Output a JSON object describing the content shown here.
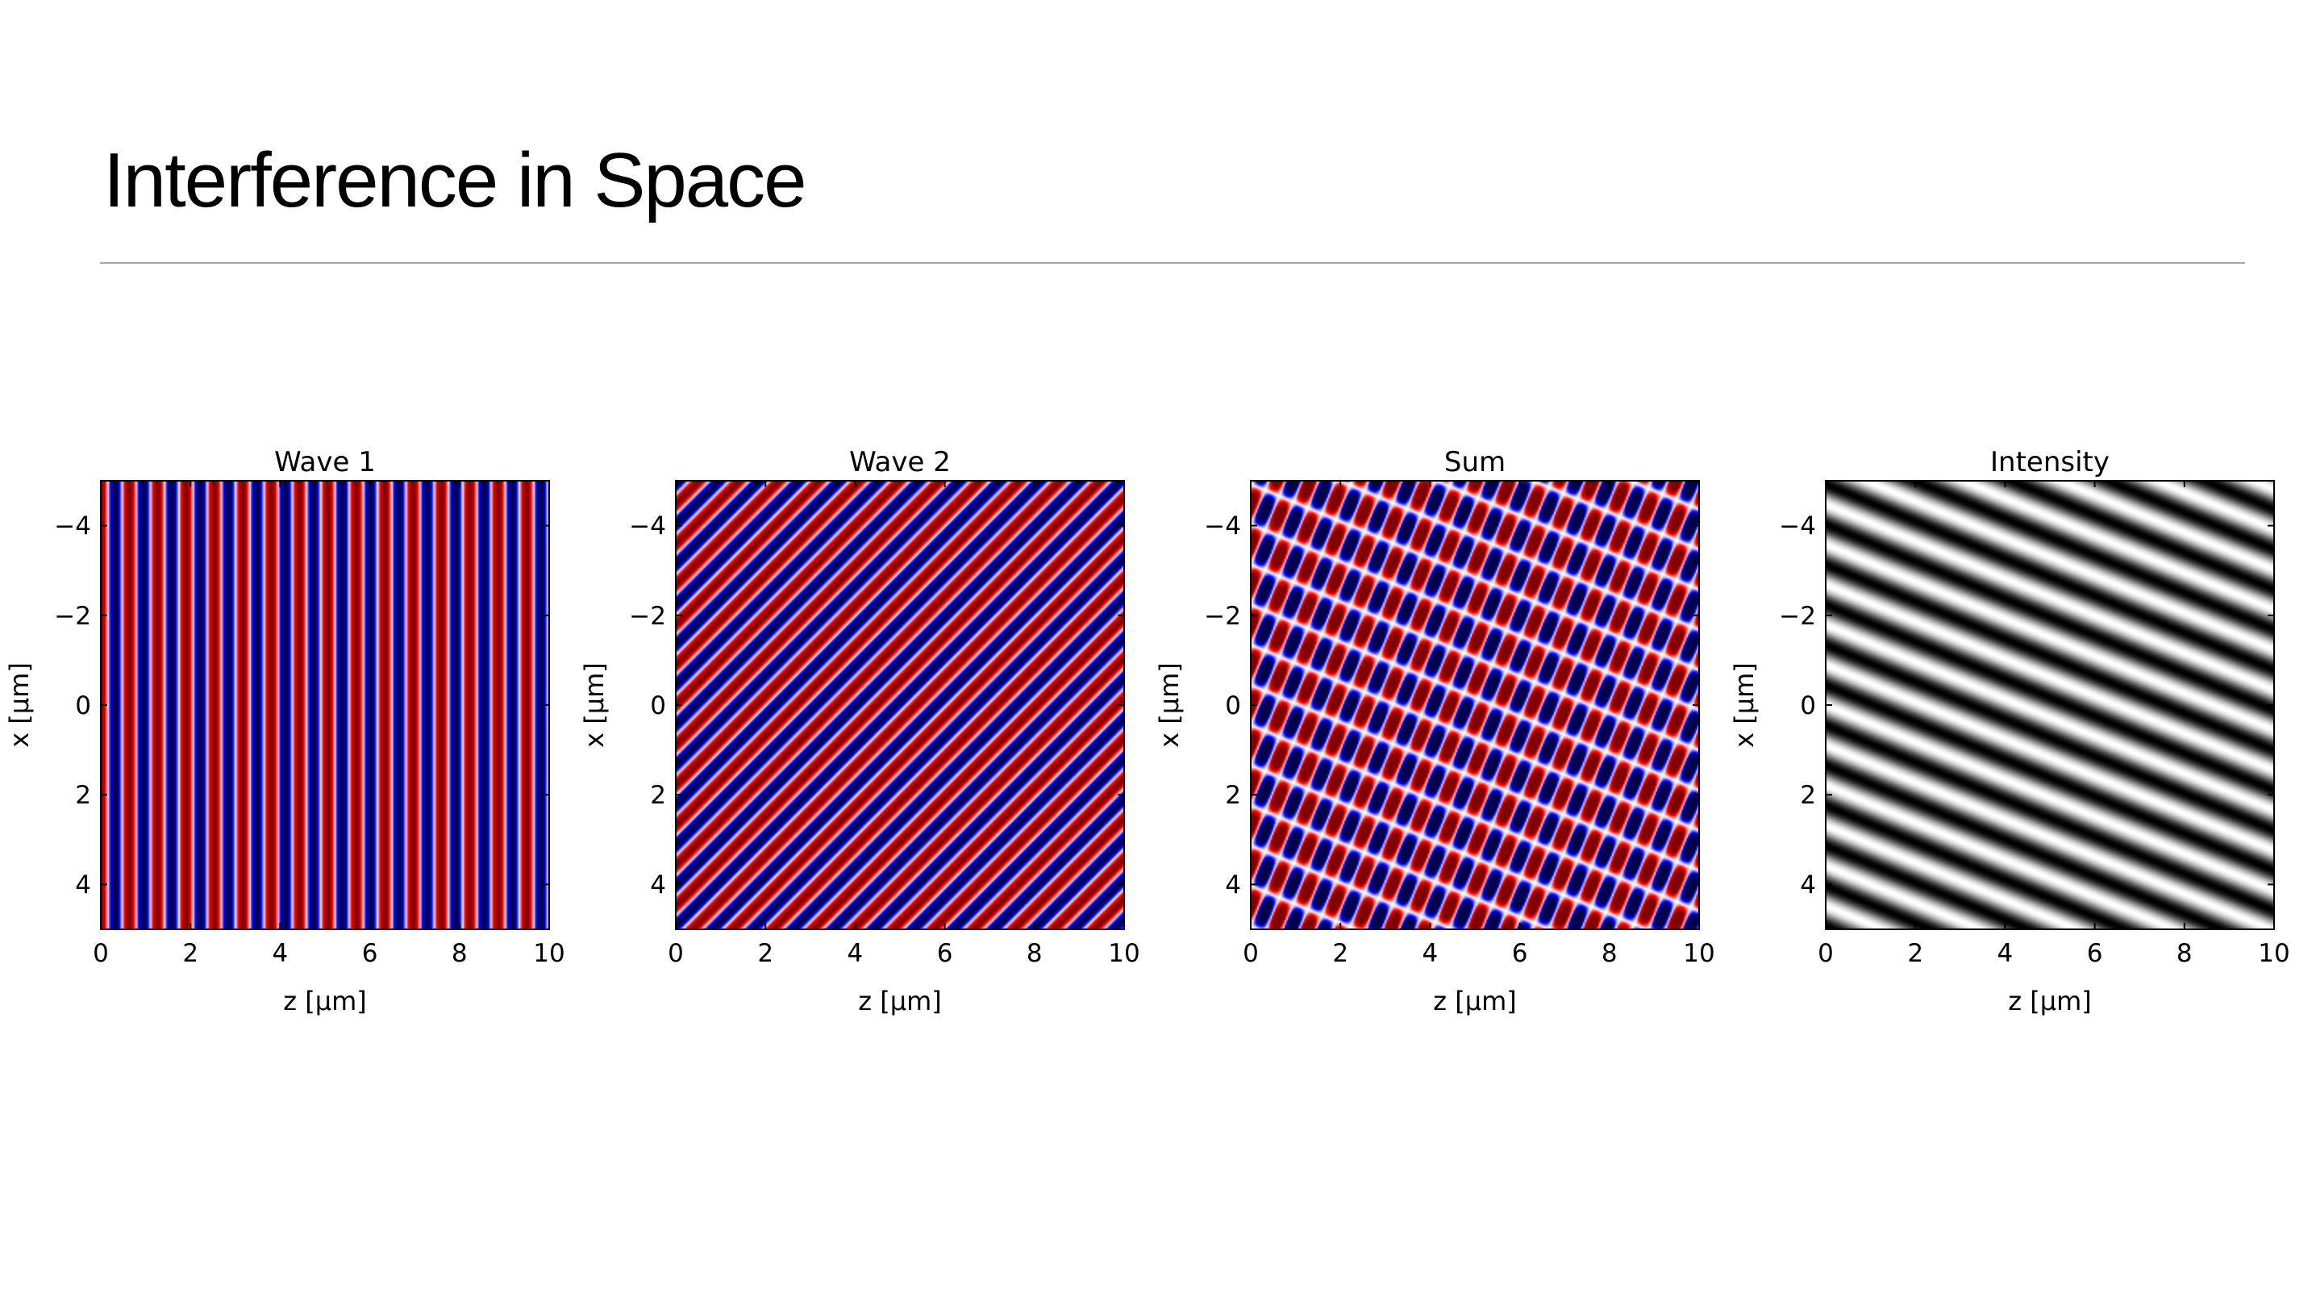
{
  "slide": {
    "title": "Interference in Space"
  },
  "chart_data": [
    {
      "type": "heatmap",
      "title": "Wave 1",
      "xlabel": "z [µm]",
      "ylabel": "x [µm]",
      "xlim": [
        0,
        10
      ],
      "ylim": [
        -5,
        5
      ],
      "y_inverted": true,
      "xticks": [
        0,
        2,
        4,
        6,
        8,
        10
      ],
      "yticks": [
        -4,
        -2,
        0,
        2,
        4
      ],
      "colormap": "seismic",
      "field": "wave1",
      "period_um": 0.633,
      "angle_deg": 0
    },
    {
      "type": "heatmap",
      "title": "Wave 2",
      "xlabel": "z [µm]",
      "ylabel": "x [µm]",
      "xlim": [
        0,
        10
      ],
      "ylim": [
        -5,
        5
      ],
      "y_inverted": true,
      "xticks": [
        0,
        2,
        4,
        6,
        8,
        10
      ],
      "yticks": [
        -4,
        -2,
        0,
        2,
        4
      ],
      "colormap": "seismic",
      "field": "wave2",
      "period_um": 0.633,
      "angle_deg": 45
    },
    {
      "type": "heatmap",
      "title": "Sum",
      "xlabel": "z [µm]",
      "ylabel": "x [µm]",
      "xlim": [
        0,
        10
      ],
      "ylim": [
        -5,
        5
      ],
      "y_inverted": true,
      "xticks": [
        0,
        2,
        4,
        6,
        8,
        10
      ],
      "yticks": [
        -4,
        -2,
        0,
        2,
        4
      ],
      "colormap": "seismic",
      "field": "sum"
    },
    {
      "type": "heatmap",
      "title": "Intensity",
      "xlabel": "z [µm]",
      "ylabel": "x [µm]",
      "xlim": [
        0,
        10
      ],
      "ylim": [
        -5,
        5
      ],
      "y_inverted": true,
      "xticks": [
        0,
        2,
        4,
        6,
        8,
        10
      ],
      "yticks": [
        -4,
        -2,
        0,
        2,
        4
      ],
      "colormap": "gray",
      "field": "intensity"
    }
  ],
  "colors": {
    "seismic_neg": "#00004c",
    "seismic_zero": "#ffffff",
    "seismic_pos": "#800000",
    "rule": "#a8a8a8"
  }
}
